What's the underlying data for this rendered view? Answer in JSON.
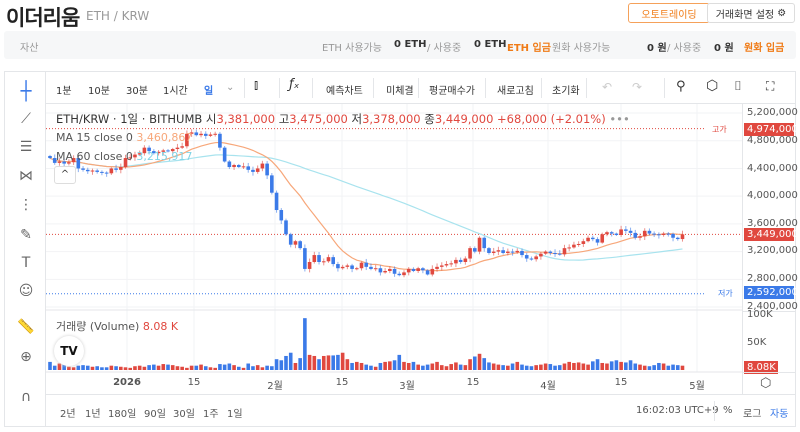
{
  "header": {
    "title": "이더리움",
    "pair": "ETH / KRW",
    "auto_trading": "오토트레이딩",
    "screen_settings": "거래화면 설정"
  },
  "assets": {
    "label": "자산",
    "eth_available_label": "ETH 사용가능",
    "eth_available": "0 ETH",
    "slash_in_use": "/ 사용중",
    "eth_in_use": "0 ETH",
    "eth_deposit": "ETH 입금",
    "krw_available_label": "원화 사용가능",
    "krw_available": "0 원",
    "krw_in_use": "0 원",
    "krw_deposit": "원화 입금"
  },
  "toolbar": {
    "intervals": [
      "1분",
      "10분",
      "30분",
      "1시간",
      "일"
    ],
    "active_interval": "일",
    "buttons": [
      "예측차트",
      "미체결",
      "평균매수가",
      "새로고침",
      "초기화"
    ]
  },
  "legend": {
    "symbol": "ETH/KRW · 1일 · BITHUMB",
    "open_label": "시",
    "open": "3,381,000",
    "high_label": "고",
    "high": "3,475,000",
    "low_label": "저",
    "low": "3,378,000",
    "close_label": "종",
    "close": "3,449,000",
    "change": "+68,000 (+2.01%)",
    "more": "•••",
    "ma15_label": "MA 15 close 0",
    "ma15_value": "3,460,867",
    "ma60_label": "MA 60 close 0",
    "ma60_value": "3,215,917",
    "volume_label": "거래량 (Volume)",
    "volume_value": "8.08 K"
  },
  "price_axis": {
    "ticks": [
      "5,200,000",
      "4,800,000",
      "4,400,000",
      "4,000,000",
      "3,600,000",
      "3,200,000",
      "2,800,000",
      "2,400,000"
    ],
    "high_label": "고가",
    "high_tag": "4,974,000",
    "low_label": "저가",
    "low_tag": "2,592,000",
    "last_tag": "3,449,000",
    "volume_ticks": [
      "100K",
      "50K"
    ],
    "volume_tag": "8.08K"
  },
  "time_axis": [
    "2026",
    "15",
    "2월",
    "15",
    "3월",
    "15",
    "4월",
    "15",
    "5월"
  ],
  "bottom": {
    "ranges": [
      "2년",
      "1년",
      "180일",
      "90일",
      "30일",
      "1주",
      "1일"
    ],
    "time": "16:02:03 UTC+9",
    "percent": "%",
    "log": "로그",
    "auto": "자동"
  },
  "colors": {
    "up": "#e0483f",
    "down": "#3b7ae8",
    "ma15": "#f7a77a",
    "ma60": "#a8e3ee",
    "accent": "#f07b16"
  },
  "chart_data": {
    "type": "candlestick",
    "x_start": "2025-12-15",
    "x_end": "2026-04-29",
    "ylim": [
      2400000,
      5200000
    ],
    "volume_ylim": [
      0,
      100000
    ],
    "close": [
      4550,
      4480,
      4500,
      4470,
      4490,
      4550,
      4400,
      4380,
      4360,
      4370,
      4350,
      4340,
      4330,
      4400,
      4380,
      4420,
      4550,
      4560,
      4600,
      4620,
      4700,
      4650,
      4620,
      4640,
      4660,
      4650,
      4680,
      4700,
      4720,
      4900,
      4920,
      4880,
      4900,
      4870,
      4890,
      4900,
      4700,
      4500,
      4420,
      4450,
      4420,
      4430,
      4380,
      4350,
      4400,
      4470,
      4300,
      4050,
      3800,
      3650,
      3450,
      3300,
      3350,
      3250,
      2950,
      3050,
      3150,
      3050,
      3060,
      3120,
      3020,
      2960,
      2980,
      3000,
      2950,
      2960,
      3040,
      2980,
      2950,
      2960,
      2900,
      2920,
      2950,
      2880,
      2860,
      2900,
      2950,
      2920,
      2960,
      2930,
      2870,
      2950,
      2980,
      3000,
      3020,
      3030,
      3080,
      3050,
      3100,
      3250,
      3200,
      3400,
      3250,
      3180,
      3200,
      3220,
      3180,
      3200,
      3190,
      3210,
      3150,
      3100,
      3090,
      3130,
      3170,
      3200,
      3180,
      3170,
      3160,
      3250,
      3260,
      3300,
      3310,
      3350,
      3400,
      3380,
      3330,
      3450,
      3480,
      3460,
      3440,
      3520,
      3500,
      3470,
      3400,
      3420,
      3500,
      3460,
      3450,
      3440,
      3460,
      3455,
      3400,
      3381,
      3449
    ],
    "close_unit": "thousand KRW",
    "volume_k": [
      15,
      8,
      12,
      10,
      6,
      5,
      8,
      9,
      8,
      6,
      7,
      5,
      5,
      8,
      7,
      6,
      5,
      4,
      7,
      8,
      6,
      9,
      10,
      8,
      11,
      10,
      9,
      7,
      6,
      4,
      8,
      8,
      10,
      7,
      5,
      4,
      11,
      10,
      12,
      9,
      6,
      4,
      12,
      7,
      9,
      5,
      8,
      7,
      20,
      18,
      26,
      32,
      13,
      22,
      96,
      28,
      26,
      20,
      26,
      27,
      27,
      28,
      32,
      20,
      13,
      15,
      13,
      10,
      8,
      6,
      13,
      15,
      16,
      18,
      28,
      15,
      13,
      15,
      10,
      8,
      10,
      12,
      15,
      9,
      7,
      11,
      14,
      10,
      9,
      20,
      25,
      30,
      22,
      14,
      12,
      10,
      9,
      8,
      12,
      15,
      10,
      8,
      7,
      9,
      10,
      12,
      11,
      8,
      9,
      12,
      15,
      13,
      14,
      12,
      10,
      16,
      20,
      13,
      12,
      16,
      18,
      15,
      14,
      18,
      12,
      10,
      8,
      7,
      9,
      13,
      12,
      8,
      10,
      9,
      8
    ]
  }
}
